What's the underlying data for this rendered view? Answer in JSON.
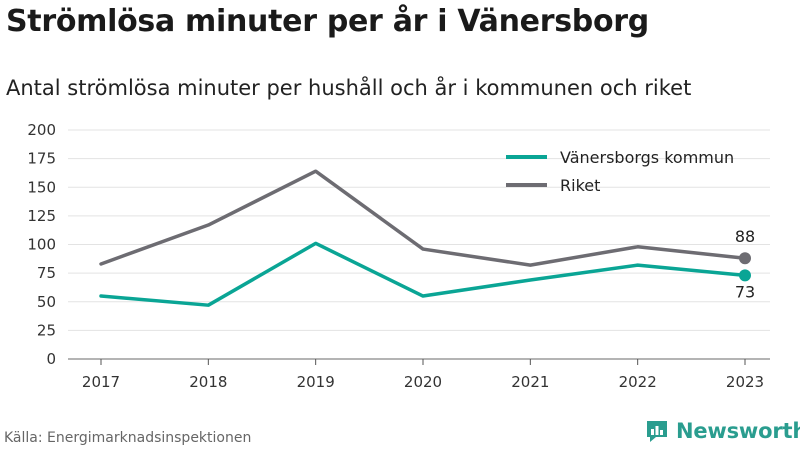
{
  "title": "Strömlösa minuter per år i Vänersborg",
  "subtitle": "Antal strömlösa minuter per hushåll och år i kommunen och riket",
  "source": "Källa: Energimarknadsinspektionen",
  "brand": {
    "name": "Newsworthy",
    "icon": "bar-chart-logo-icon",
    "color": "#2a9d8f"
  },
  "chart_data": {
    "type": "line",
    "x": [
      2017,
      2018,
      2019,
      2020,
      2021,
      2022,
      2023
    ],
    "ylim": [
      0,
      200
    ],
    "yticks": [
      0,
      25,
      50,
      75,
      100,
      125,
      150,
      175,
      200
    ],
    "grid": true,
    "legend_position": "top-right",
    "series": [
      {
        "name": "Vänersborgs kommun",
        "color": "#0aa595",
        "values": [
          55,
          47,
          101,
          55,
          69,
          82,
          73
        ],
        "end_label": "73"
      },
      {
        "name": "Riket",
        "color": "#6d6c72",
        "values": [
          83,
          117,
          164,
          96,
          82,
          98,
          88
        ],
        "end_label": "88"
      }
    ]
  }
}
